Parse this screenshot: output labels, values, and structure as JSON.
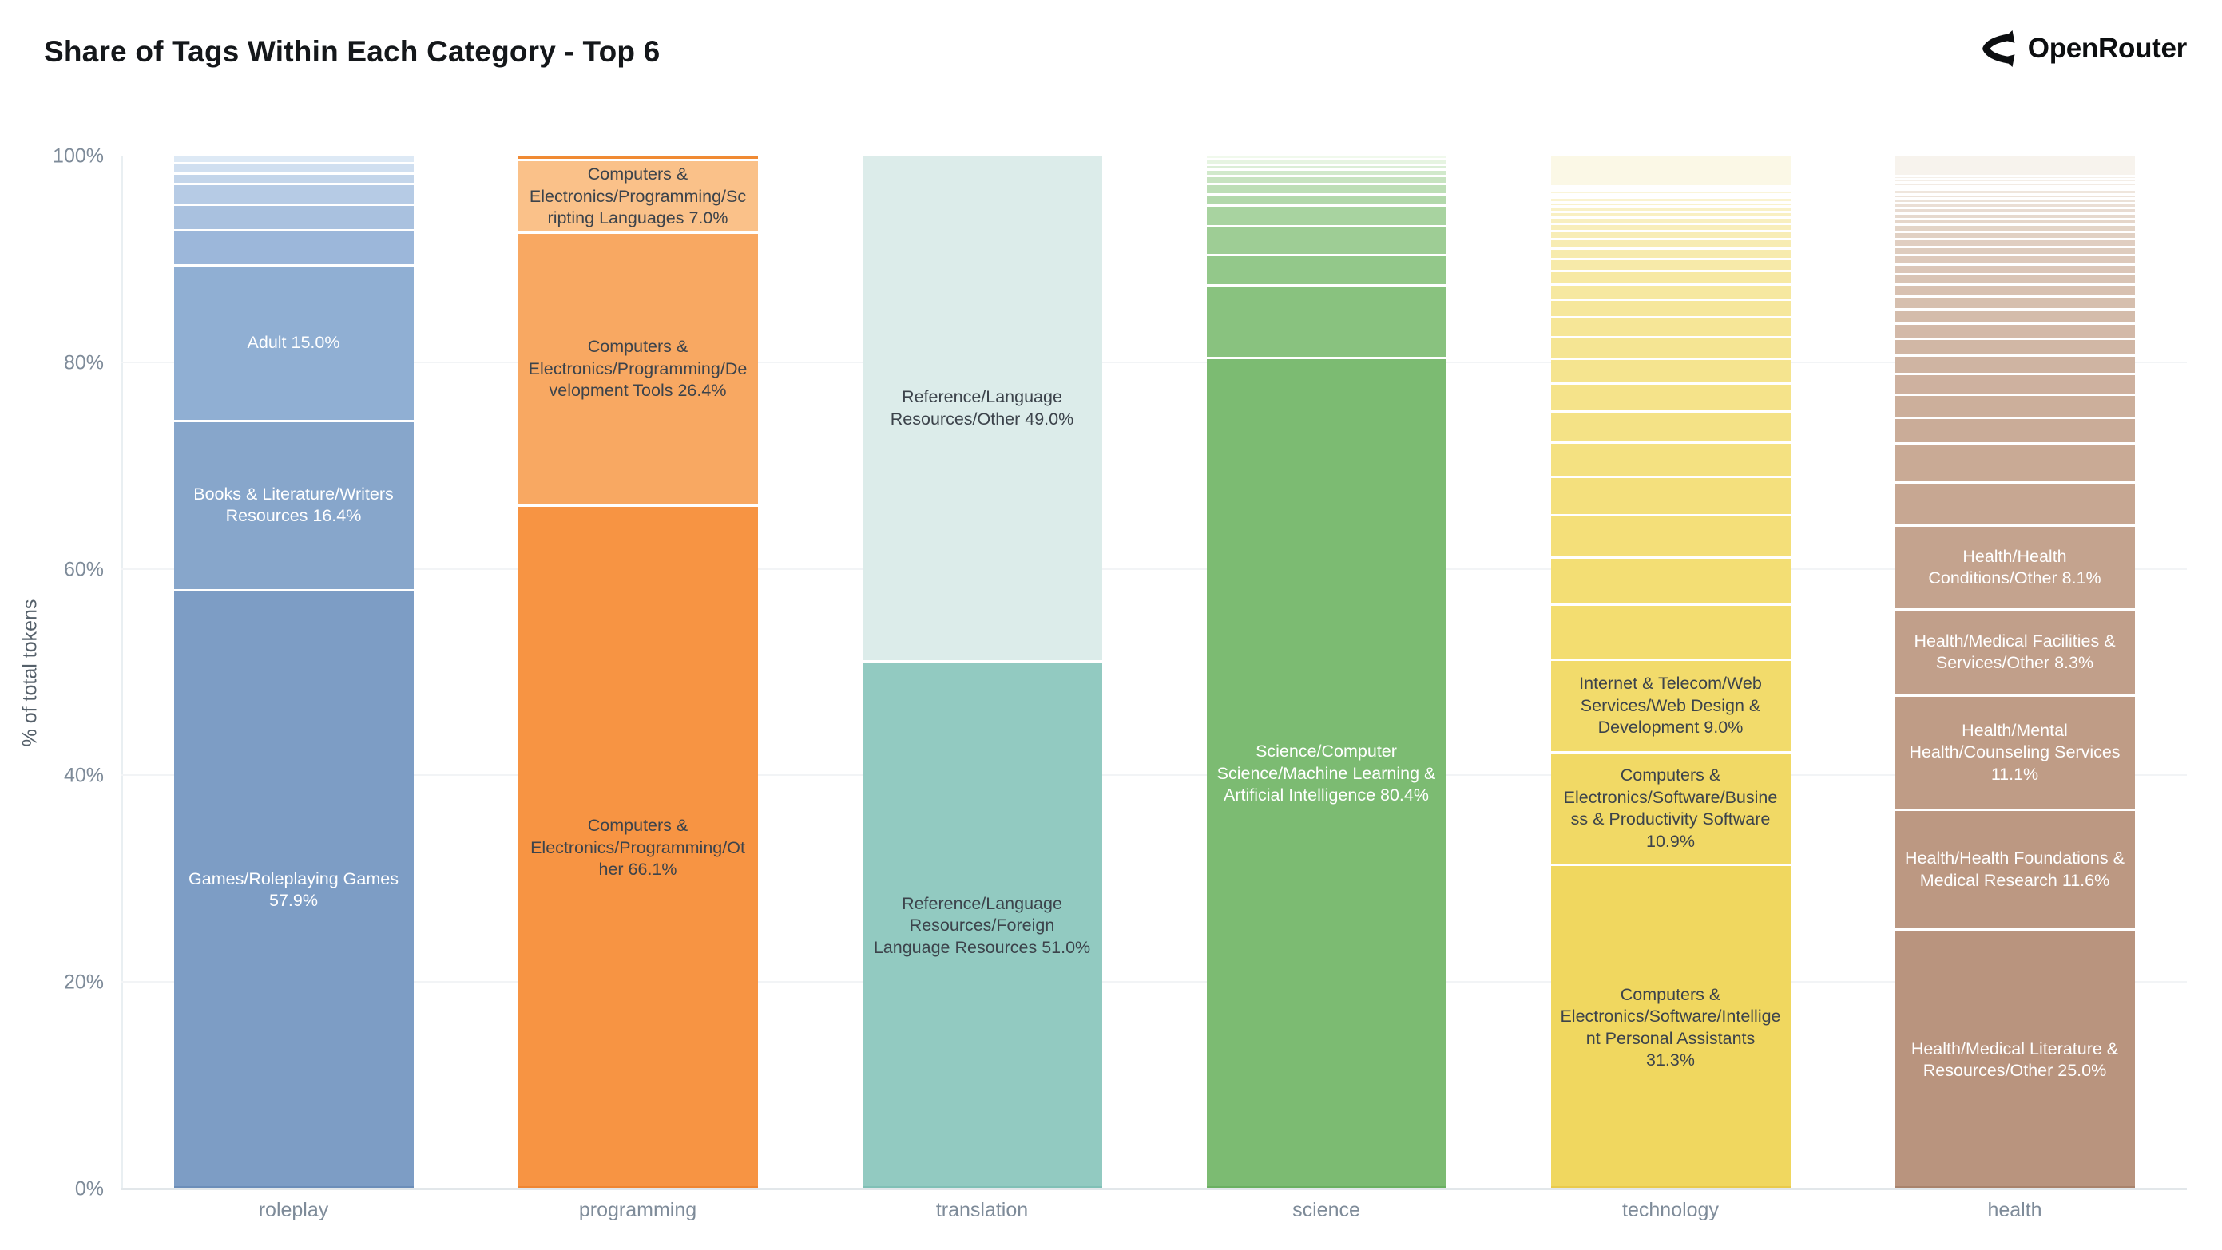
{
  "header": {
    "title": "Share of Tags Within Each Category - Top 6",
    "brand": "OpenRouter"
  },
  "chart_data": {
    "type": "bar",
    "stacked": true,
    "normalized_percent": true,
    "title": "Share of Tags Within Each Category - Top 6",
    "ylabel": "% of total tokens",
    "xlabel": "",
    "ylim": [
      0,
      100
    ],
    "yticks": [
      "0%",
      "20%",
      "40%",
      "60%",
      "80%",
      "100%"
    ],
    "grid": "horizontal-light",
    "legend": "none",
    "categories": [
      "roleplay",
      "programming",
      "translation",
      "science",
      "technology",
      "health"
    ],
    "bars": [
      {
        "category": "roleplay",
        "edge_color": "#6b8db8",
        "segments": [
          {
            "label": "Games/Roleplaying Games",
            "pct": 57.9,
            "color": "#7d9dc5",
            "text_color": "#ffffff"
          },
          {
            "label": "Books & Literature/Writers Resources",
            "pct": 16.4,
            "color": "#87a6cb",
            "text_color": "#ffffff"
          },
          {
            "label": "Adult",
            "pct": 15.0,
            "color": "#90afd3",
            "text_color": "#ffffff"
          }
        ],
        "unlabeled_tail_pcts": [
          3.4,
          2.5,
          2.0,
          1.0,
          1.0,
          0.8
        ],
        "tail_color_from": "#9cb7da",
        "tail_color_to": "#dde9f5"
      },
      {
        "category": "programming",
        "edge_color": "#ee8430",
        "segments": [
          {
            "label": "Computers & Electronics/Programming/Other",
            "pct": 66.1,
            "color": "#f79443",
            "text_color": "#3c434b"
          },
          {
            "label": "Computers & Electronics/Programming/Development Tools",
            "pct": 26.4,
            "color": "#f8a862",
            "text_color": "#3c434b"
          },
          {
            "label": "Computers & Electronics/Programming/Scripting Languages",
            "pct": 7.0,
            "color": "#fac189",
            "text_color": "#3c434b"
          }
        ],
        "unlabeled_tail_pcts": [
          0.5
        ],
        "tail_color_from": "#f08a33",
        "tail_color_to": "#f08a33"
      },
      {
        "category": "translation",
        "edge_color": "#7fbfb5",
        "segments": [
          {
            "label": "Reference/Language Resources/Foreign Language Resources",
            "pct": 51.0,
            "color": "#92cac1",
            "text_color": "#3c434b"
          },
          {
            "label": "Reference/Language Resources/Other",
            "pct": 49.0,
            "color": "#dcecea",
            "text_color": "#3c434b"
          }
        ],
        "unlabeled_tail_pcts": [],
        "tail_color_from": "#92cac1",
        "tail_color_to": "#dcecea"
      },
      {
        "category": "science",
        "edge_color": "#69af60",
        "segments": [
          {
            "label": "Science/Computer Science/Machine Learning & Artificial Intelligence",
            "pct": 80.4,
            "color": "#7cbb72",
            "text_color": "#ffffff"
          }
        ],
        "unlabeled_tail_pcts": [
          7.0,
          2.9,
          2.8,
          2.0,
          1.1,
          1.0,
          0.8,
          0.6,
          0.5,
          0.5,
          0.4
        ],
        "tail_color_from": "#89c27f",
        "tail_color_to": "#f0f9ec"
      },
      {
        "category": "technology",
        "edge_color": "#e8c94a",
        "segments": [
          {
            "label": "Computers & Electronics/Software/Intelligent Personal Assistants",
            "pct": 31.3,
            "color": "#f0d75f",
            "text_color": "#3c434b"
          },
          {
            "label": "Computers & Electronics/Software/Business & Productivity Software",
            "pct": 10.9,
            "color": "#f1d965",
            "text_color": "#3c434b"
          },
          {
            "label": "Internet & Telecom/Web Services/Web Design & Development",
            "pct": 9.0,
            "color": "#f2db6b",
            "text_color": "#3c434b"
          }
        ],
        "unlabeled_tail_pcts": [
          5.3,
          4.6,
          4.1,
          3.7,
          3.3,
          3.0,
          2.7,
          2.4,
          2.1,
          1.9,
          1.7,
          1.5,
          1.3,
          1.2,
          1.0,
          0.9,
          0.8,
          0.7,
          0.6,
          0.55,
          0.5,
          0.45,
          0.4,
          0.35,
          0.3,
          0.25,
          0.2,
          3.0
        ],
        "tail_color_from": "#f3dd70",
        "tail_color_to": "#fbf8e6"
      },
      {
        "category": "health",
        "edge_color": "#a8826c",
        "segments": [
          {
            "label": "Health/Medical Literature & Resources/Other",
            "pct": 25.0,
            "color": "#b9947e",
            "text_color": "#ffffff"
          },
          {
            "label": "Health/Health Foundations & Medical Research",
            "pct": 11.6,
            "color": "#bc9882",
            "text_color": "#ffffff"
          },
          {
            "label": "Health/Mental Health/Counseling Services",
            "pct": 11.1,
            "color": "#bf9c86",
            "text_color": "#ffffff"
          },
          {
            "label": "Health/Medical Facilities & Services/Other",
            "pct": 8.3,
            "color": "#c19f8a",
            "text_color": "#ffffff"
          },
          {
            "label": "Health/Health Conditions/Other",
            "pct": 8.1,
            "color": "#c4a38e",
            "text_color": "#ffffff"
          }
        ],
        "unlabeled_tail_pcts": [
          4.2,
          3.8,
          2.5,
          2.2,
          2.0,
          1.8,
          1.6,
          1.5,
          1.35,
          1.25,
          1.15,
          1.05,
          0.95,
          0.9,
          0.8,
          0.75,
          0.7,
          0.65,
          0.6,
          0.55,
          0.5,
          0.48,
          0.45,
          0.42,
          0.4,
          0.38,
          0.35,
          0.33,
          0.3,
          2.0
        ],
        "tail_color_from": "#c7a792",
        "tail_color_to": "#f7f3ed"
      }
    ]
  }
}
